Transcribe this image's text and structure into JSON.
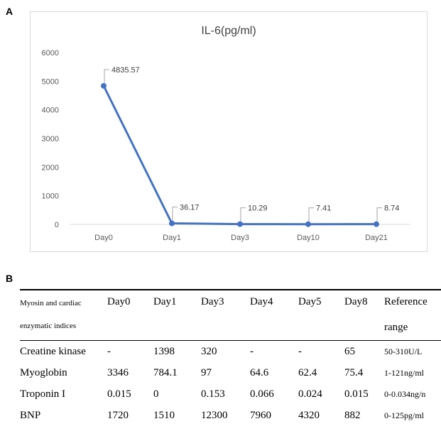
{
  "panels": {
    "a": "A",
    "b": "B"
  },
  "chart_data": {
    "type": "line",
    "title": "IL-6(pg/ml)",
    "categories": [
      "Day0",
      "Day1",
      "Day3",
      "Day10",
      "Day21"
    ],
    "series": [
      {
        "values": [
          4835.57,
          36.17,
          10.29,
          7.41,
          8.74
        ]
      }
    ],
    "data_labels": [
      "4835.57",
      "36.17",
      "10.29",
      "7.41",
      "8.74"
    ],
    "yticks": [
      "0",
      "1000",
      "2000",
      "3000",
      "4000",
      "5000",
      "6000"
    ],
    "ylim": [
      0,
      6000
    ],
    "grid": false,
    "line_color": "#4472c4"
  },
  "table": {
    "header_line1": "Myosin and cardiac",
    "header_line2": "enzymatic indices",
    "columns": [
      "Day0",
      "Day1",
      "Day3",
      "Day4",
      "Day5",
      "Day8"
    ],
    "reference_line1": "Reference",
    "reference_line2": "range",
    "rows": [
      {
        "name": "Creatine kinase",
        "values": [
          "-",
          "1398",
          "320",
          "-",
          "-",
          "65"
        ],
        "ref": "50-310U/L"
      },
      {
        "name": "Myoglobin",
        "values": [
          "3346",
          "784.1",
          "97",
          "64.6",
          "62.4",
          "75.4"
        ],
        "ref": "1-121ng/ml"
      },
      {
        "name": "Troponin I",
        "values": [
          "0.015",
          "0",
          "0.153",
          "0.066",
          "0.024",
          "0.015"
        ],
        "ref": "0-0.034ng/n"
      },
      {
        "name": "BNP",
        "values": [
          "1720",
          "1510",
          "12300",
          "7960",
          "4320",
          "882"
        ],
        "ref": "0-125pg/ml"
      }
    ]
  }
}
